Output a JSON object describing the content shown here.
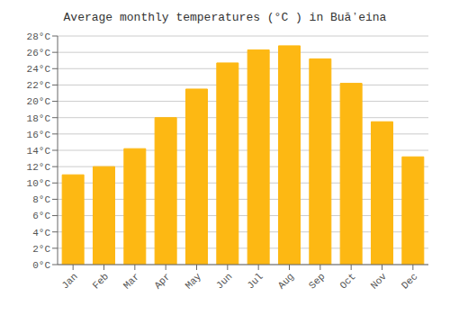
{
  "chart_data": {
    "type": "bar",
    "title": "Average monthly temperatures (°C ) in Buāʼeina",
    "categories": [
      "Jan",
      "Feb",
      "Mar",
      "Apr",
      "May",
      "Jun",
      "Jul",
      "Aug",
      "Sep",
      "Oct",
      "Nov",
      "Dec"
    ],
    "values": [
      11,
      12,
      14.2,
      18,
      21.5,
      24.7,
      26.3,
      26.8,
      25.2,
      22.2,
      17.5,
      13.2
    ],
    "color": "#FDB813",
    "ylim": [
      0,
      28
    ],
    "yticks": [
      {
        "value": 0,
        "label": "0°C"
      },
      {
        "value": 2,
        "label": "2°C"
      },
      {
        "value": 4,
        "label": "4°C"
      },
      {
        "value": 6,
        "label": "6°C"
      },
      {
        "value": 8,
        "label": "8°C"
      },
      {
        "value": 10,
        "label": "10°C"
      },
      {
        "value": 12,
        "label": "12°C"
      },
      {
        "value": 14,
        "label": "14°C"
      },
      {
        "value": 16,
        "label": "16°C"
      },
      {
        "value": 18,
        "label": "18°C"
      },
      {
        "value": 20,
        "label": "20°C"
      },
      {
        "value": 22,
        "label": "22°C"
      },
      {
        "value": 24,
        "label": "24°C"
      },
      {
        "value": 26,
        "label": "26°C"
      },
      {
        "value": 28,
        "label": "28°C"
      }
    ],
    "grid": true
  }
}
